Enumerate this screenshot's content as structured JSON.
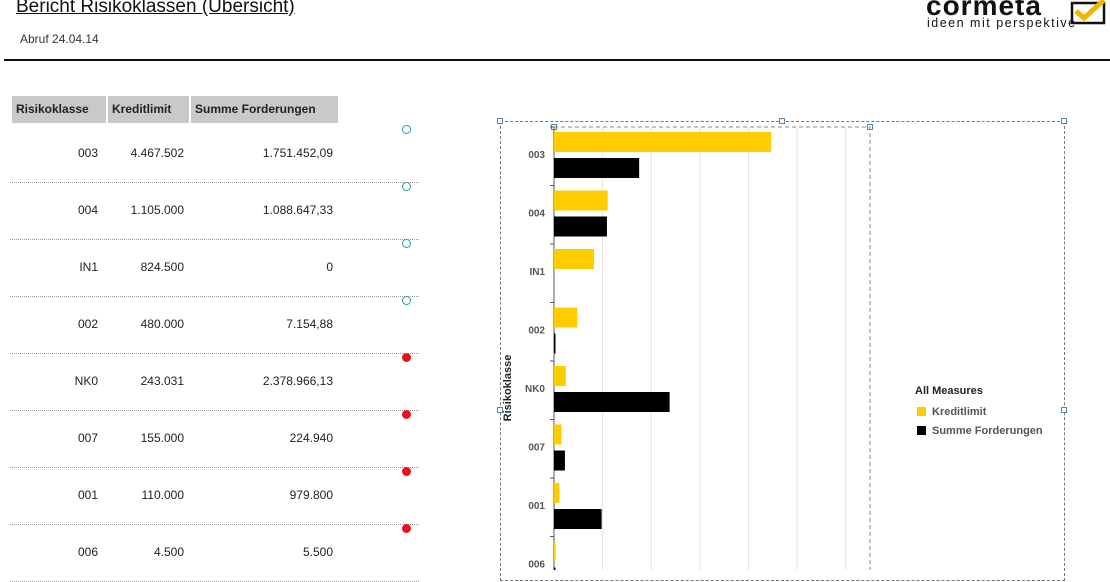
{
  "header": {
    "title": "Bericht Risikoklassen (Übersicht)",
    "subtitle": "Abruf 24.04.14",
    "logo_brand": "cormeta",
    "logo_tagline": "ideen mit perspektive"
  },
  "table": {
    "columns": [
      "Risikoklasse",
      "Kreditlimit",
      "Summe Forderungen"
    ],
    "rows": [
      {
        "klasse": "003",
        "limit": "4.467.502",
        "summe": "1.751.452,09",
        "status": "ok"
      },
      {
        "klasse": "004",
        "limit": "1.105.000",
        "summe": "1.088.647,33",
        "status": "ok"
      },
      {
        "klasse": "IN1",
        "limit": "824.500",
        "summe": "0",
        "status": "ok"
      },
      {
        "klasse": "002",
        "limit": "480.000",
        "summe": "7.154,88",
        "status": "ok"
      },
      {
        "klasse": "NK0",
        "limit": "243.031",
        "summe": "2.378.966,13",
        "status": "warn"
      },
      {
        "klasse": "007",
        "limit": "155.000",
        "summe": "224.940",
        "status": "warn"
      },
      {
        "klasse": "001",
        "limit": "110.000",
        "summe": "979.800",
        "status": "warn"
      },
      {
        "klasse": "006",
        "limit": "4.500",
        "summe": "5.500",
        "status": "warn"
      }
    ]
  },
  "colors": {
    "kreditlimit": "#ffcc00",
    "summe": "#000000",
    "ok": "#2a9d9b",
    "warn": "#e8111a"
  },
  "chart_data": {
    "type": "bar",
    "orientation": "horizontal",
    "categories": [
      "003",
      "004",
      "IN1",
      "002",
      "NK0",
      "007",
      "001",
      "006"
    ],
    "series": [
      {
        "name": "Kreditlimit",
        "values": [
          4467502,
          1105000,
          824500,
          480000,
          243031,
          155000,
          110000,
          4500
        ]
      },
      {
        "name": "Summe Forderungen",
        "values": [
          1751452.09,
          1088647.33,
          0,
          7154.88,
          2378966.13,
          224940,
          979800,
          5500
        ]
      }
    ],
    "ylabel": "Risikoklasse",
    "legend_title": "All Measures",
    "legend_position": "right",
    "xlim": [
      0,
      8000000
    ],
    "grid": true
  }
}
